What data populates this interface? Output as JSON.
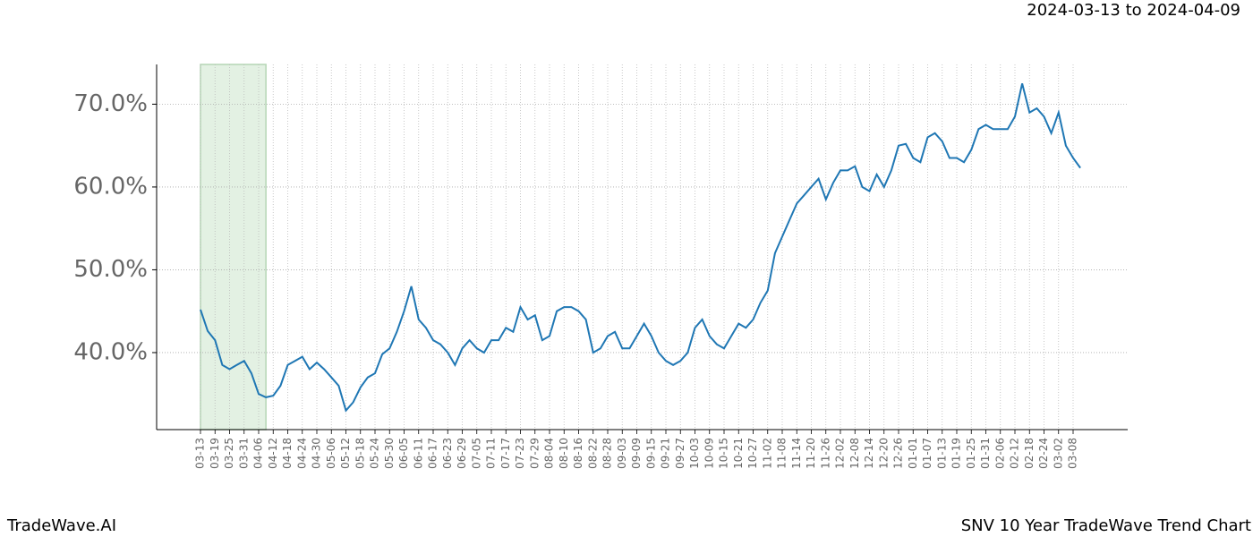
{
  "chart_data": {
    "type": "line",
    "date_range": "2024-03-13 to 2024-04-09",
    "brand": "TradeWave.AI",
    "title": "SNV 10 Year TradeWave Trend Chart",
    "categories": [
      "03-13",
      null,
      "03-19",
      null,
      "03-25",
      null,
      "03-31",
      null,
      "04-06",
      null,
      "04-12",
      null,
      "04-18",
      null,
      "04-24",
      null,
      "04-30",
      null,
      "05-06",
      null,
      "05-12",
      null,
      "05-18",
      null,
      "05-24",
      null,
      "05-30",
      null,
      "06-05",
      null,
      "06-11",
      null,
      "06-17",
      null,
      "06-23",
      null,
      "06-29",
      null,
      "07-05",
      null,
      "07-11",
      null,
      "07-17",
      null,
      "07-23",
      null,
      "07-29",
      null,
      "08-04",
      null,
      "08-10",
      null,
      "08-16",
      null,
      "08-22",
      null,
      "08-28",
      null,
      "09-03",
      null,
      "09-09",
      null,
      "09-15",
      null,
      "09-21",
      null,
      "09-27",
      null,
      "10-03",
      null,
      "10-09",
      null,
      "10-15",
      null,
      "10-21",
      null,
      "10-27",
      null,
      "11-02",
      null,
      "11-08",
      null,
      "11-14",
      null,
      "11-20",
      null,
      "11-26",
      null,
      "12-02",
      null,
      "12-08",
      null,
      "12-14",
      null,
      "12-20",
      null,
      "12-26",
      null,
      "01-01",
      null,
      "01-07",
      null,
      "01-13",
      null,
      "01-19",
      null,
      "01-25",
      null,
      "01-31",
      null,
      "02-06",
      null,
      "02-12",
      null,
      "02-18",
      null,
      "02-24",
      null,
      "03-02",
      null,
      "03-08",
      null
    ],
    "series": [
      {
        "color": "#1f77b4",
        "values": [
          45.2,
          42.6,
          41.5,
          38.5,
          38,
          38.5,
          39,
          37.5,
          35,
          34.6,
          34.8,
          36,
          38.5,
          39,
          39.5,
          38,
          38.8,
          38,
          37,
          36,
          33,
          34,
          35.8,
          37,
          37.5,
          39.8,
          40.5,
          42.5,
          45,
          48,
          44,
          43,
          41.5,
          41,
          40,
          38.5,
          40.5,
          41.5,
          40.5,
          40,
          41.5,
          41.5,
          43,
          42.5,
          45.5,
          44,
          44.5,
          41.5,
          42,
          45,
          45.5,
          45.5,
          45,
          44,
          40,
          40.5,
          42,
          42.5,
          40.5,
          40.5,
          42,
          43.5,
          42,
          40,
          39,
          38.5,
          39,
          40,
          43,
          44,
          42,
          41,
          40.5,
          42,
          43.5,
          43,
          44,
          46,
          47.5,
          52,
          54,
          56,
          58,
          59,
          60,
          61,
          58.5,
          60.5,
          62,
          62,
          62.5,
          60,
          59.5,
          61.5,
          60,
          62,
          65,
          65.2,
          63.5,
          63,
          66,
          66.5,
          65.5,
          63.5,
          63.5,
          63,
          64.5,
          67,
          67.5,
          67,
          67,
          67,
          68.5,
          72.5,
          69,
          69.5,
          68.5,
          66.5,
          69,
          65,
          63.5,
          62.3
        ]
      }
    ],
    "highlight": {
      "start": 0,
      "end": 9,
      "color": "#e3f1e3"
    },
    "ylim": [
      30.7,
      74.8
    ],
    "yticks": [
      {
        "value": 40,
        "label": "40.0%"
      },
      {
        "value": 50,
        "label": "50.0%"
      },
      {
        "value": 60,
        "label": "60.0%"
      },
      {
        "value": 70,
        "label": "70.0%"
      }
    ],
    "grid": true
  }
}
